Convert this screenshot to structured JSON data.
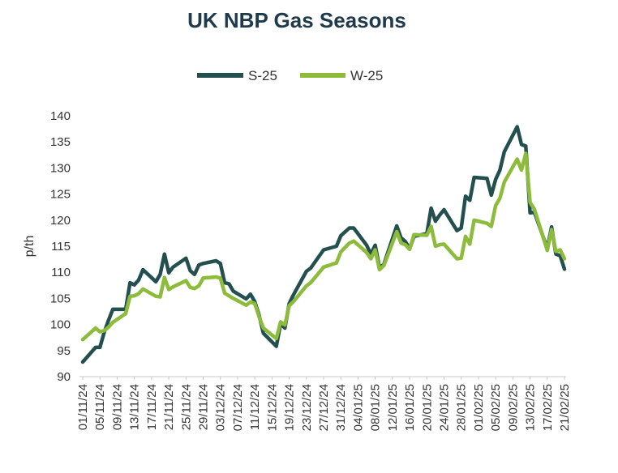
{
  "chart_data": {
    "type": "line",
    "title": "UK NBP Gas Seasons",
    "ylabel": "p/th",
    "xlabel": "",
    "ylim": [
      90,
      140
    ],
    "yticks": [
      90,
      95,
      100,
      105,
      110,
      115,
      120,
      125,
      130,
      135,
      140
    ],
    "grid": false,
    "legend_position": "top-center",
    "x_tick_labels": [
      "01/11/24",
      "05/11/24",
      "09/11/24",
      "13/11/24",
      "17/11/24",
      "21/11/24",
      "25/11/24",
      "29/11/24",
      "03/12/24",
      "07/12/24",
      "11/12/24",
      "15/12/24",
      "19/12/24",
      "23/12/24",
      "27/12/24",
      "31/12/24",
      "04/01/25",
      "08/01/25",
      "12/01/25",
      "16/01/25",
      "20/01/25",
      "24/01/25",
      "28/01/25",
      "01/02/25",
      "05/02/25",
      "09/02/25",
      "13/02/25",
      "17/02/25",
      "21/02/25"
    ],
    "x": [
      "2024-11-01",
      "2024-11-04",
      "2024-11-05",
      "2024-11-06",
      "2024-11-07",
      "2024-11-08",
      "2024-11-11",
      "2024-11-12",
      "2024-11-13",
      "2024-11-14",
      "2024-11-15",
      "2024-11-18",
      "2024-11-19",
      "2024-11-20",
      "2024-11-21",
      "2024-11-22",
      "2024-11-25",
      "2024-11-26",
      "2024-11-27",
      "2024-11-28",
      "2024-11-29",
      "2024-12-02",
      "2024-12-03",
      "2024-12-04",
      "2024-12-05",
      "2024-12-06",
      "2024-12-09",
      "2024-12-10",
      "2024-12-11",
      "2024-12-12",
      "2024-12-13",
      "2024-12-16",
      "2024-12-17",
      "2024-12-18",
      "2024-12-19",
      "2024-12-20",
      "2024-12-23",
      "2024-12-24",
      "2024-12-27",
      "2024-12-30",
      "2024-12-31",
      "2025-01-02",
      "2025-01-03",
      "2025-01-06",
      "2025-01-07",
      "2025-01-08",
      "2025-01-09",
      "2025-01-10",
      "2025-01-13",
      "2025-01-14",
      "2025-01-15",
      "2025-01-16",
      "2025-01-17",
      "2025-01-20",
      "2025-01-21",
      "2025-01-22",
      "2025-01-23",
      "2025-01-24",
      "2025-01-27",
      "2025-01-28",
      "2025-01-29",
      "2025-01-30",
      "2025-01-31",
      "2025-02-03",
      "2025-02-04",
      "2025-02-05",
      "2025-02-06",
      "2025-02-07",
      "2025-02-10",
      "2025-02-11",
      "2025-02-12",
      "2025-02-13",
      "2025-02-14",
      "2025-02-17",
      "2025-02-18",
      "2025-02-19",
      "2025-02-20",
      "2025-02-21"
    ],
    "series": [
      {
        "name": "S-25",
        "color": "#234f4f",
        "values": [
          92.8,
          95.6,
          95.6,
          98.5,
          100.8,
          102.9,
          102.9,
          108.0,
          107.6,
          108.5,
          110.5,
          108.2,
          109.6,
          113.5,
          109.9,
          111.0,
          112.7,
          110.3,
          109.6,
          111.4,
          111.7,
          112.2,
          111.7,
          108.0,
          107.8,
          106.4,
          104.9,
          105.8,
          104.4,
          101.8,
          98.3,
          95.8,
          100.2,
          99.3,
          104.0,
          105.7,
          110.2,
          110.8,
          114.3,
          115.0,
          117.0,
          118.5,
          118.5,
          115.2,
          113.5,
          115.2,
          110.9,
          111.5,
          118.9,
          116.6,
          115.9,
          114.5,
          116.9,
          117.4,
          122.3,
          119.8,
          121.0,
          122.0,
          118.0,
          118.5,
          124.6,
          123.8,
          128.2,
          128.0,
          124.8,
          127.8,
          129.6,
          133.1,
          137.9,
          134.5,
          134.2,
          121.4,
          121.5,
          114.6,
          118.7,
          113.5,
          113.2,
          110.6
        ]
      },
      {
        "name": "W-25",
        "color": "#8dbb3b",
        "values": [
          97.1,
          99.3,
          98.6,
          98.8,
          99.5,
          100.4,
          102.1,
          105.4,
          105.5,
          105.9,
          106.8,
          105.4,
          105.3,
          109.0,
          106.7,
          107.2,
          108.4,
          107.1,
          106.9,
          107.4,
          108.9,
          109.1,
          108.9,
          106.0,
          105.5,
          105.0,
          103.7,
          104.3,
          104.0,
          101.5,
          99.3,
          97.3,
          100.5,
          99.9,
          103.6,
          104.4,
          107.4,
          108.0,
          111.0,
          111.8,
          113.9,
          115.6,
          116.0,
          113.8,
          112.6,
          114.3,
          110.5,
          111.3,
          117.8,
          115.6,
          115.3,
          114.4,
          117.2,
          117.1,
          118.8,
          115.0,
          115.3,
          115.4,
          112.6,
          112.7,
          116.9,
          115.4,
          120.0,
          119.4,
          118.8,
          122.8,
          124.2,
          127.3,
          131.7,
          129.6,
          132.8,
          123.4,
          122.1,
          114.2,
          118.2,
          114.0,
          114.3,
          112.6
        ]
      }
    ]
  }
}
